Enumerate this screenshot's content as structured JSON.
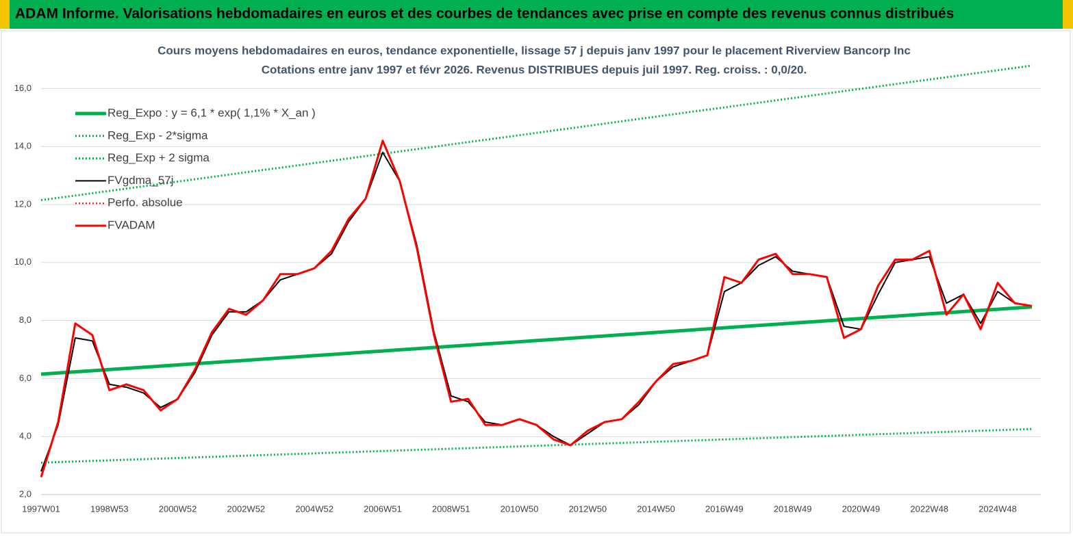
{
  "header": {
    "title": "ADAM Informe. Valorisations hebdomadaires en euros et des courbes de tendances avec prise en compte des revenus connus distribués"
  },
  "chart_data": {
    "type": "line",
    "title": "Cours moyens hebdomadaires en euros, tendance exponentielle, lissage 57 j depuis janv 1997 pour le placement Riverview Bancorp Inc",
    "subtitle": "Cotations entre janv 1997 et févr 2026. Revenus DISTRIBUES depuis juil 1997. Reg. croiss. : 0,0/20.",
    "categories": [
      "1997W01",
      null,
      null,
      null,
      "1998W53",
      null,
      null,
      null,
      "2000W52",
      null,
      null,
      null,
      "2002W52",
      null,
      null,
      null,
      "2004W52",
      null,
      null,
      null,
      "2006W51",
      null,
      null,
      null,
      "2008W51",
      null,
      null,
      null,
      "2010W50",
      null,
      null,
      null,
      "2012W50",
      null,
      null,
      null,
      "2014W50",
      null,
      null,
      null,
      "2016W49",
      null,
      null,
      null,
      "2018W49",
      null,
      null,
      null,
      "2020W49",
      null,
      null,
      null,
      "2022W48",
      null,
      null,
      null,
      "2024W48",
      null,
      null
    ],
    "ylim": [
      2,
      17
    ],
    "yticks": [
      {
        "value": 2,
        "label": "2,0"
      },
      {
        "value": 4,
        "label": "4,0"
      },
      {
        "value": 6,
        "label": "6,0"
      },
      {
        "value": 8,
        "label": "8,0"
      },
      {
        "value": 10,
        "label": "10,0"
      },
      {
        "value": 12,
        "label": "12,0"
      },
      {
        "value": 14,
        "label": "14,0"
      },
      {
        "value": 16,
        "label": "16,0"
      }
    ],
    "grid": true,
    "legend": "upper-left",
    "series": [
      {
        "name": "Reg_Expo : y = 6,1 * exp( 1,1% *  X_an )",
        "color": "#00b050",
        "style": "solid",
        "width": 5,
        "values": [
          6.15,
          6.19,
          6.23,
          6.27,
          6.31,
          6.35,
          6.39,
          6.43,
          6.47,
          6.51,
          6.55,
          6.59,
          6.63,
          6.67,
          6.71,
          6.75,
          6.79,
          6.83,
          6.87,
          6.91,
          6.95,
          6.99,
          7.03,
          7.07,
          7.11,
          7.15,
          7.19,
          7.23,
          7.27,
          7.31,
          7.35,
          7.39,
          7.43,
          7.47,
          7.51,
          7.55,
          7.59,
          7.63,
          7.67,
          7.71,
          7.75,
          7.79,
          7.83,
          7.87,
          7.91,
          7.95,
          7.99,
          8.03,
          8.07,
          8.11,
          8.15,
          8.19,
          8.23,
          8.27,
          8.31,
          8.35,
          8.39,
          8.43,
          8.47
        ]
      },
      {
        "name": "Reg_Exp - 2*sigma",
        "color": "#00b050",
        "style": "dotted",
        "width": 3,
        "values": [
          3.1,
          3.12,
          3.14,
          3.16,
          3.18,
          3.2,
          3.22,
          3.24,
          3.26,
          3.28,
          3.3,
          3.32,
          3.34,
          3.36,
          3.38,
          3.4,
          3.42,
          3.44,
          3.46,
          3.48,
          3.5,
          3.52,
          3.54,
          3.56,
          3.58,
          3.6,
          3.62,
          3.64,
          3.66,
          3.68,
          3.7,
          3.72,
          3.74,
          3.76,
          3.78,
          3.8,
          3.82,
          3.84,
          3.86,
          3.88,
          3.9,
          3.92,
          3.94,
          3.96,
          3.98,
          4.0,
          4.02,
          4.04,
          4.06,
          4.08,
          4.1,
          4.12,
          4.14,
          4.16,
          4.18,
          4.2,
          4.22,
          4.24,
          4.26
        ]
      },
      {
        "name": "Reg_Exp + 2 sigma",
        "color": "#00b050",
        "style": "dotted",
        "width": 3,
        "values": [
          12.15,
          12.23,
          12.31,
          12.39,
          12.47,
          12.55,
          12.63,
          12.71,
          12.79,
          12.87,
          12.95,
          13.03,
          13.11,
          13.19,
          13.27,
          13.35,
          13.43,
          13.51,
          13.59,
          13.67,
          13.75,
          13.83,
          13.91,
          13.99,
          14.07,
          14.15,
          14.23,
          14.31,
          14.39,
          14.47,
          14.55,
          14.63,
          14.71,
          14.79,
          14.87,
          14.95,
          15.03,
          15.11,
          15.19,
          15.27,
          15.35,
          15.43,
          15.51,
          15.59,
          15.67,
          15.75,
          15.83,
          15.91,
          15.99,
          16.07,
          16.15,
          16.23,
          16.31,
          16.39,
          16.47,
          16.55,
          16.63,
          16.71,
          16.79
        ]
      },
      {
        "name": "FVgdma_57j",
        "color": "#000000",
        "style": "solid",
        "width": 2,
        "values": [
          2.8,
          4.4,
          7.4,
          7.3,
          5.8,
          5.7,
          5.5,
          5.0,
          5.3,
          6.2,
          7.5,
          8.3,
          8.3,
          8.7,
          9.4,
          9.6,
          9.8,
          10.3,
          11.4,
          12.2,
          13.8,
          12.8,
          10.6,
          7.6,
          5.4,
          5.2,
          4.5,
          4.4,
          4.6,
          4.4,
          4.0,
          3.7,
          4.1,
          4.5,
          4.6,
          5.1,
          5.9,
          6.4,
          6.6,
          6.8,
          9.0,
          9.3,
          9.9,
          10.2,
          9.7,
          9.6,
          9.5,
          7.8,
          7.7,
          8.9,
          10.0,
          10.1,
          10.2,
          8.6,
          8.9,
          7.9,
          9.0,
          8.6,
          8.5
        ]
      },
      {
        "name": "Perfo. absolue",
        "color": "#ff0000",
        "style": "dotted",
        "width": 2,
        "values": [
          null,
          null,
          null,
          null,
          null,
          null,
          null,
          null,
          null,
          null,
          null,
          null,
          null,
          null,
          null,
          null,
          null,
          null,
          null,
          null,
          null,
          null,
          null,
          null,
          null,
          null,
          null,
          null,
          null,
          null,
          null,
          null,
          null,
          null,
          null,
          null,
          null,
          null,
          null,
          null,
          null,
          null,
          null,
          null,
          null,
          null,
          null,
          null,
          null,
          null,
          null,
          null,
          null,
          null,
          null,
          null,
          null,
          null,
          null
        ]
      },
      {
        "name": "FVADAM",
        "color": "#ff0000",
        "style": "solid",
        "width": 3,
        "values": [
          2.6,
          4.5,
          7.9,
          7.5,
          5.6,
          5.8,
          5.6,
          4.9,
          5.3,
          6.3,
          7.6,
          8.4,
          8.2,
          8.7,
          9.6,
          9.6,
          9.8,
          10.4,
          11.5,
          12.2,
          14.2,
          12.8,
          10.5,
          7.5,
          5.2,
          5.3,
          4.4,
          4.4,
          4.6,
          4.4,
          3.9,
          3.7,
          4.2,
          4.5,
          4.6,
          5.2,
          5.9,
          6.5,
          6.6,
          6.8,
          9.5,
          9.3,
          10.1,
          10.3,
          9.6,
          9.6,
          9.5,
          7.4,
          7.7,
          9.2,
          10.1,
          10.1,
          10.4,
          8.2,
          8.9,
          7.7,
          9.3,
          8.6,
          8.5
        ]
      }
    ]
  }
}
